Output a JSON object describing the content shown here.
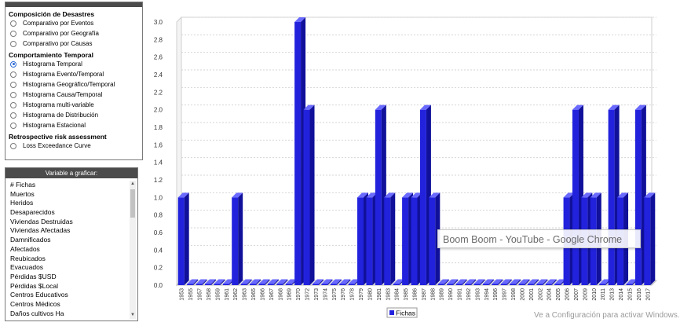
{
  "analysis_panel": {
    "header": "",
    "section1_title": "Composición de Desastres",
    "section1_options": [
      {
        "label": "Comparativo por Eventos",
        "checked": false
      },
      {
        "label": "Comparativo por Geografía",
        "checked": false
      },
      {
        "label": "Comparativo por Causas",
        "checked": false
      }
    ],
    "section2_title": "Comportamiento Temporal",
    "section2_options": [
      {
        "label": "Histograma Temporal",
        "checked": true
      },
      {
        "label": "Histograma Evento/Temporal",
        "checked": false
      },
      {
        "label": "Histograma Geográfico/Temporal",
        "checked": false
      },
      {
        "label": "Histograma Causa/Temporal",
        "checked": false
      },
      {
        "label": "Histograma multi-variable",
        "checked": false
      },
      {
        "label": "Histograma de Distribución",
        "checked": false
      },
      {
        "label": "Histograma Estacional",
        "checked": false
      }
    ],
    "section3_title": "Retrospective risk assessment",
    "section3_options": [
      {
        "label": "Loss Exceedance Curve",
        "checked": false
      }
    ]
  },
  "variable_panel": {
    "title": "Variable a graficar:",
    "items": [
      "# Fichas",
      "Muertos",
      "Heridos",
      "Desaparecidos",
      "Viviendas Destruidas",
      "Viviendas Afectadas",
      "Damnificados",
      "Afectados",
      "Reubicados",
      "Evacuados",
      "Pérdidas $USD",
      "Pérdidas $Local",
      "Centros Educativos",
      "Centros Médicos",
      "Daños cultivos Ha"
    ]
  },
  "tooltip": {
    "text": "Boom Boom - YouTube - Google Chrome"
  },
  "watermark": {
    "text": "Ve a Configuración para activar Windows."
  },
  "chart_data": {
    "type": "bar",
    "title": "",
    "xlabel": "",
    "ylabel": "",
    "ylim": [
      0,
      3.0
    ],
    "yticks": [
      "0.0",
      "0.2",
      "0.4",
      "0.6",
      "0.8",
      "1.0",
      "1.2",
      "1.4",
      "1.6",
      "1.8",
      "2.0",
      "2.2",
      "2.4",
      "2.6",
      "2.8",
      "3.0"
    ],
    "grid": true,
    "legend": "bottom-center",
    "bar_color": "#2222dd",
    "categories": [
      "1953",
      "1955",
      "1957",
      "1958",
      "1959",
      "1961",
      "1962",
      "1963",
      "1965",
      "1966",
      "1967",
      "1968",
      "1969",
      "1970",
      "1972",
      "1973",
      "1974",
      "1975",
      "1976",
      "1978",
      "1979",
      "1980",
      "1981",
      "1983",
      "1984",
      "1985",
      "1986",
      "1987",
      "1988",
      "1989",
      "1990",
      "1991",
      "1992",
      "1993",
      "1994",
      "1996",
      "1997",
      "1998",
      "2000",
      "2001",
      "2002",
      "2004",
      "2005",
      "2006",
      "2007",
      "2009",
      "2010",
      "2011",
      "2013",
      "2014",
      "2015",
      "2016",
      "2017"
    ],
    "series": [
      {
        "name": "Fichas",
        "values": [
          1,
          0,
          0,
          0,
          0,
          0,
          1,
          0,
          0,
          0,
          0,
          0,
          0,
          3,
          2,
          0,
          0,
          0,
          0,
          0,
          1,
          1,
          2,
          1,
          0,
          1,
          1,
          2,
          1,
          0,
          0,
          0,
          0,
          0,
          0,
          0,
          0,
          0,
          0,
          0,
          0,
          0,
          0,
          1,
          2,
          1,
          1,
          0,
          2,
          1,
          0,
          2,
          1
        ]
      }
    ]
  }
}
